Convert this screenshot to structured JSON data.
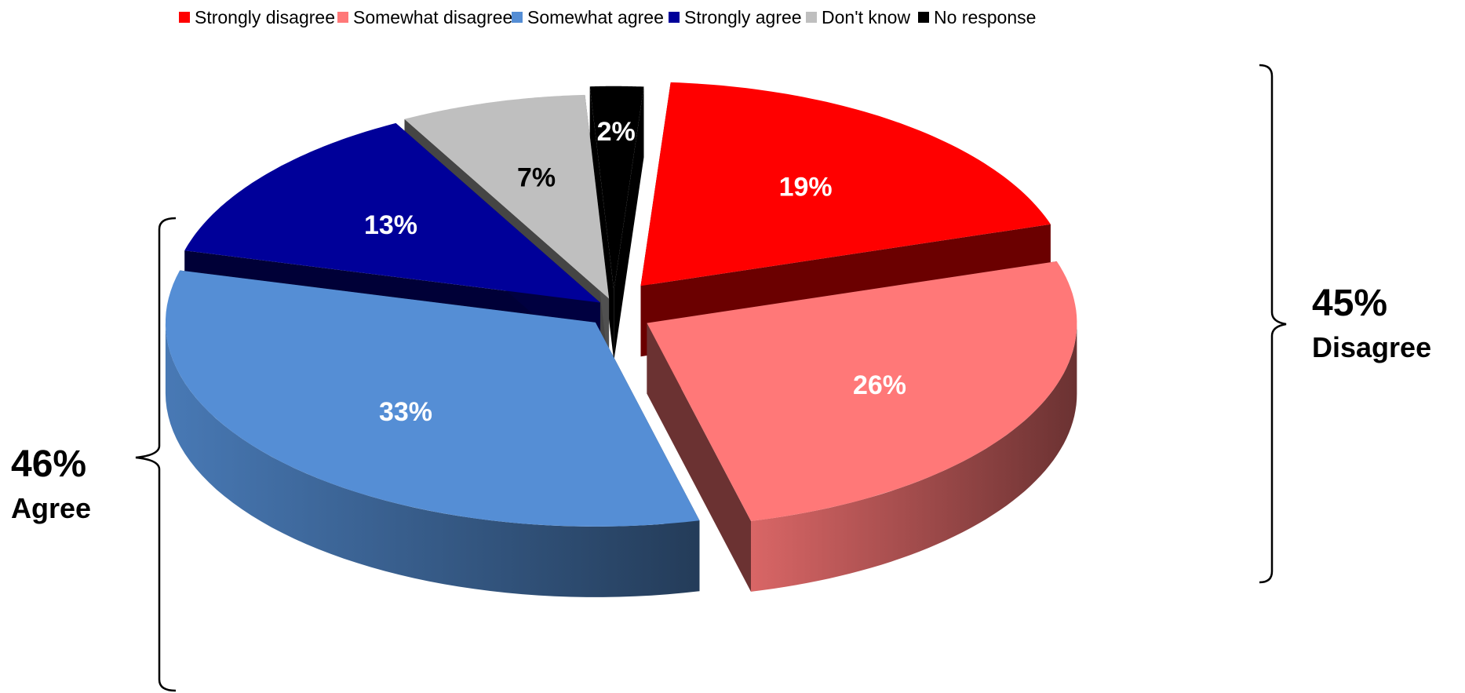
{
  "chart_data": {
    "type": "pie",
    "style": "3d-exploded",
    "title": "",
    "legend_position": "top",
    "categories": [
      "Strongly disagree",
      "Somewhat disagree",
      "Somewhat agree",
      "Strongly agree",
      "Don't know",
      "No response"
    ],
    "values": [
      19,
      26,
      33,
      13,
      7,
      2
    ],
    "value_labels": [
      "19%",
      "26%",
      "33%",
      "13%",
      "7%",
      "2%"
    ],
    "colors": [
      "#ff0000",
      "#ff7878",
      "#558ed5",
      "#000099",
      "#bfbfbf",
      "#000000"
    ],
    "label_colors": [
      "#ffffff",
      "#ffffff",
      "#ffffff",
      "#ffffff",
      "#000000",
      "#ffffff"
    ],
    "groups": [
      {
        "percent": "45%",
        "name": "Disagree",
        "members": [
          "Strongly disagree",
          "Somewhat disagree"
        ]
      },
      {
        "percent": "46%",
        "name": "Agree",
        "members": [
          "Somewhat agree",
          "Strongly agree"
        ]
      }
    ]
  }
}
